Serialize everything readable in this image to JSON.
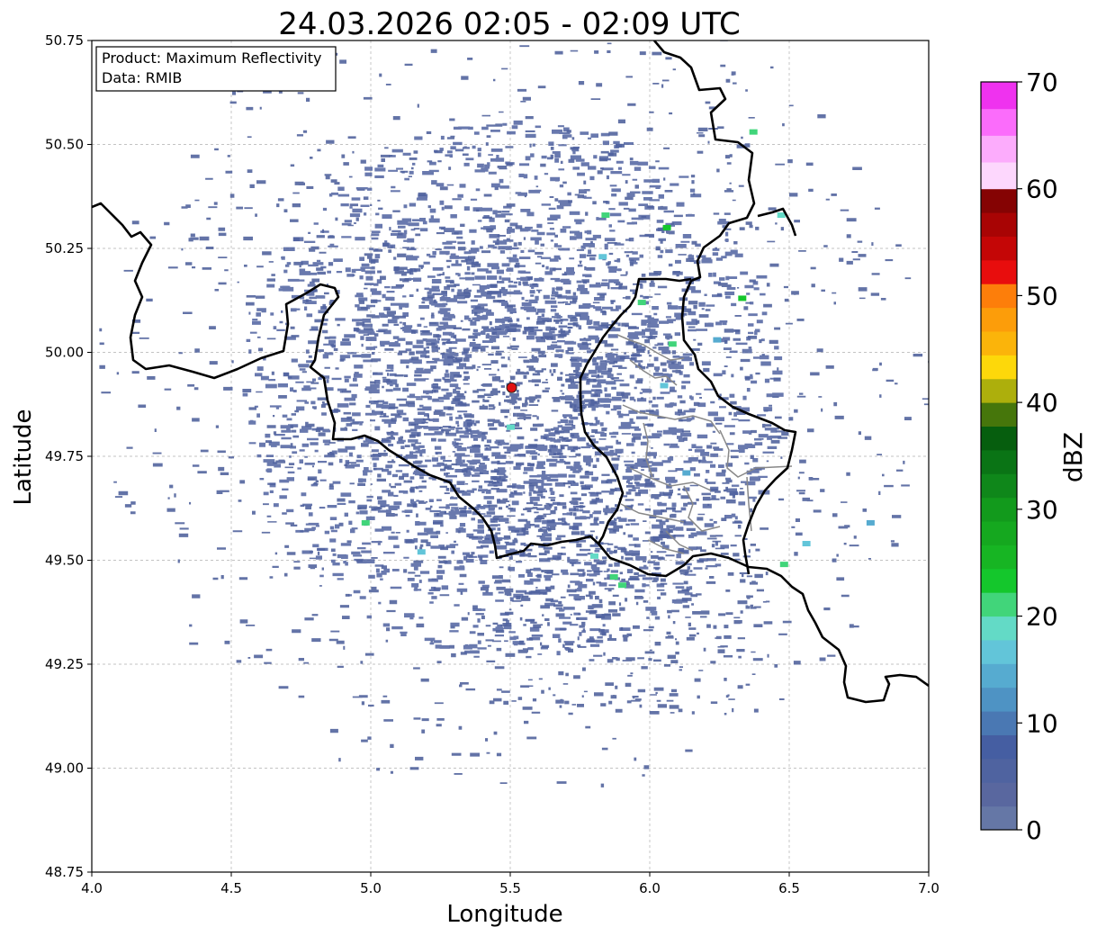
{
  "figure": {
    "title": "24.03.2026 02:05 - 02:09 UTC",
    "info_box": {
      "line1": "Product: Maximum Reflectivity",
      "line2": "Data: RMIB"
    }
  },
  "chart_data": {
    "type": "heatmap",
    "title": "24.03.2026 02:05 - 02:09 UTC",
    "xlabel": "Longitude",
    "ylabel": "Latitude",
    "xlim": [
      4.0,
      7.0
    ],
    "ylim": [
      48.75,
      50.75
    ],
    "x_ticks": [
      "4.0",
      "4.5",
      "5.0",
      "5.5",
      "6.0",
      "6.5",
      "7.0"
    ],
    "y_ticks": [
      "48.75",
      "49.00",
      "49.25",
      "49.50",
      "49.75",
      "50.00",
      "50.25",
      "50.50",
      "50.75"
    ],
    "grid": true,
    "radar_site": {
      "lon": 5.505,
      "lat": 49.915
    },
    "colorbar": {
      "label": "dBZ",
      "range": [
        0,
        70
      ],
      "ticks": [
        "0",
        "10",
        "20",
        "30",
        "40",
        "50",
        "60",
        "70"
      ],
      "colors": [
        "#6577a6",
        "#59679f",
        "#4f63a0",
        "#455ea2",
        "#4a78b3",
        "#4e93c4",
        "#56abd0",
        "#62c5d9",
        "#63dac6",
        "#41d57a",
        "#14c72c",
        "#17b523",
        "#15a81f",
        "#129a1c",
        "#0f871a",
        "#0a7415",
        "#065e0e",
        "#46760b",
        "#adaf0c",
        "#fdd80a",
        "#fbb40a",
        "#fc9d0a",
        "#fd7e0a",
        "#e80d0d",
        "#c40606",
        "#a80404",
        "#850303",
        "#fdd7fd",
        "#fcacfc",
        "#fb6cfb",
        "#ef32ef"
      ]
    },
    "echoes": [
      {
        "lon": 6.37,
        "lat": 50.53,
        "dbz": 22
      },
      {
        "lon": 6.47,
        "lat": 50.33,
        "dbz": 18
      },
      {
        "lon": 6.06,
        "lat": 50.3,
        "dbz": 24
      },
      {
        "lon": 6.33,
        "lat": 50.13,
        "dbz": 24
      },
      {
        "lon": 5.97,
        "lat": 50.12,
        "dbz": 20
      },
      {
        "lon": 6.08,
        "lat": 50.02,
        "dbz": 22
      },
      {
        "lon": 5.84,
        "lat": 50.33,
        "dbz": 22
      },
      {
        "lon": 5.83,
        "lat": 50.23,
        "dbz": 16
      },
      {
        "lon": 5.8,
        "lat": 49.51,
        "dbz": 18
      },
      {
        "lon": 5.9,
        "lat": 49.44,
        "dbz": 22
      },
      {
        "lon": 5.87,
        "lat": 49.46,
        "dbz": 20
      },
      {
        "lon": 6.05,
        "lat": 49.92,
        "dbz": 16
      },
      {
        "lon": 4.98,
        "lat": 49.59,
        "dbz": 22
      },
      {
        "lon": 5.18,
        "lat": 49.52,
        "dbz": 16
      },
      {
        "lon": 6.56,
        "lat": 49.54,
        "dbz": 16
      },
      {
        "lon": 6.79,
        "lat": 49.59,
        "dbz": 14
      },
      {
        "lon": 6.48,
        "lat": 49.49,
        "dbz": 20
      },
      {
        "lon": 5.5,
        "lat": 49.82,
        "dbz": 18
      },
      {
        "lon": 6.24,
        "lat": 50.03,
        "dbz": 14
      },
      {
        "lon": 6.13,
        "lat": 49.71,
        "dbz": 14
      }
    ]
  }
}
